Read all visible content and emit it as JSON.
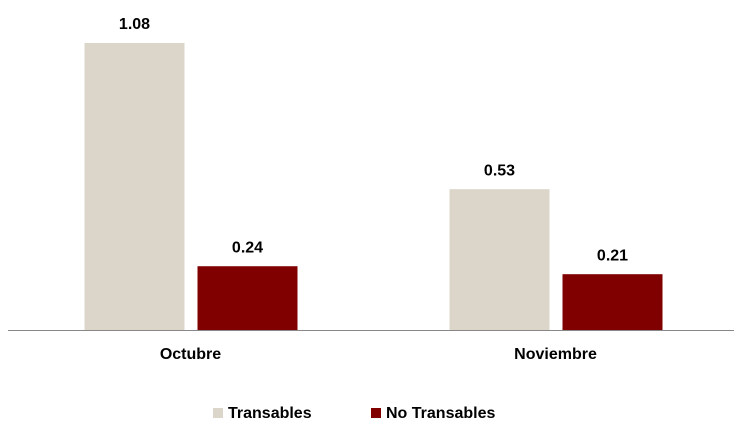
{
  "chart_data": {
    "type": "bar",
    "categories": [
      "Octubre",
      "Noviembre"
    ],
    "series": [
      {
        "name": "Transables",
        "color": "#dcd5c9",
        "values": [
          1.08,
          0.53
        ]
      },
      {
        "name": "No Transables",
        "color": "#800000",
        "values": [
          0.24,
          0.21
        ]
      }
    ],
    "ylim": [
      0,
      1.08
    ],
    "legend": "bottom"
  }
}
